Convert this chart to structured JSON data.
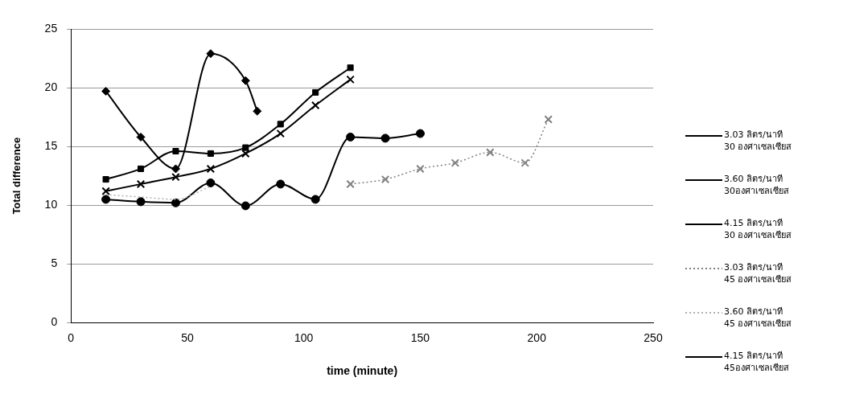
{
  "chart_data": {
    "type": "line",
    "xlabel": "time (minute)",
    "ylabel": "Total difference",
    "xlim": [
      0,
      250
    ],
    "xticks": [
      0,
      50,
      100,
      150,
      200,
      250
    ],
    "ylim": [
      0,
      25
    ],
    "yticks": [
      0,
      5,
      10,
      15,
      20,
      25
    ],
    "grid": "y",
    "legend": "right",
    "series": [
      {
        "name": "3.03 ลิตร/นาที\n30 องศาเซลเซียส",
        "color": "#000000",
        "marker": "diamond",
        "line_style": "solid",
        "x": [
          15,
          30,
          45,
          60,
          75,
          80
        ],
        "values": [
          19.7,
          15.8,
          13.1,
          22.9,
          20.6,
          18.0
        ]
      },
      {
        "name": "3.60 ลิตร/นาที\n30องศาเซลเซียส",
        "color": "#000000",
        "marker": "square",
        "line_style": "solid",
        "x": [
          15,
          30,
          45,
          60,
          75,
          90,
          105,
          120
        ],
        "values": [
          12.2,
          13.1,
          14.6,
          14.4,
          14.9,
          16.9,
          19.6,
          21.7
        ]
      },
      {
        "name": "4.15 ลิตร/นาที\n30 องศาเซลเซียส",
        "color": "#000000",
        "marker": "cross",
        "line_style": "solid",
        "x": [
          15,
          30,
          45,
          60,
          75,
          90,
          105,
          120
        ],
        "values": [
          11.2,
          11.8,
          12.4,
          13.1,
          14.4,
          16.1,
          18.5,
          20.7
        ]
      },
      {
        "name": "3.03 ลิตร/นาที\n45 องศาเซลเซียส",
        "color": "#808080",
        "marker": "cross",
        "line_style": "dotted",
        "x": [
          120,
          135,
          150,
          165,
          180,
          195,
          205
        ],
        "values": [
          11.8,
          12.2,
          13.1,
          13.6,
          14.5,
          13.6,
          17.3
        ]
      },
      {
        "name": "3.60 ลิตร/นาที\n45 องศาเซลเซียส",
        "color": "#b0b0b0",
        "marker": "none",
        "line_style": "dotted",
        "x": [
          15,
          30,
          45,
          60
        ],
        "values": [
          10.9,
          10.7,
          10.5,
          11.6
        ]
      },
      {
        "name": "4.15 ลิตร/นาที\n45องศาเซลเซียส",
        "color": "#000000",
        "marker": "circle",
        "line_style": "solid",
        "x": [
          15,
          30,
          45,
          60,
          75,
          90,
          105,
          120,
          135,
          150
        ],
        "values": [
          10.5,
          10.3,
          10.2,
          11.9,
          9.95,
          11.8,
          10.5,
          15.8,
          15.7,
          16.1
        ]
      }
    ]
  }
}
